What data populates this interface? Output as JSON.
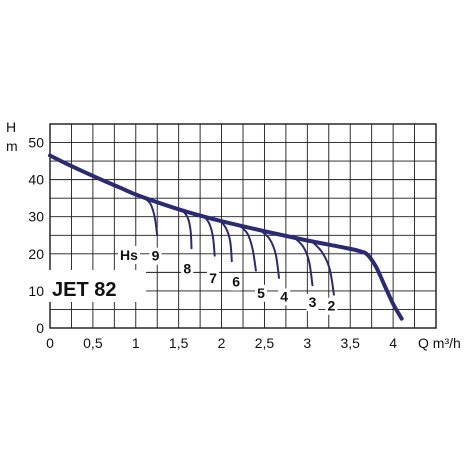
{
  "chart_data": {
    "type": "line",
    "title": "JET 82",
    "ylabel_top": "H",
    "ylabel_bottom": "m",
    "xlabel": "Q m³/h",
    "xlim": [
      0,
      4.5
    ],
    "ylim": [
      0,
      55
    ],
    "grid": true,
    "x_ticks": [
      {
        "v": 0,
        "label": "0"
      },
      {
        "v": 0.5,
        "label": "0,5"
      },
      {
        "v": 1,
        "label": "1"
      },
      {
        "v": 1.5,
        "label": "1,5"
      },
      {
        "v": 2,
        "label": "2"
      },
      {
        "v": 2.5,
        "label": "2,5"
      },
      {
        "v": 3,
        "label": "3"
      },
      {
        "v": 3.5,
        "label": "3,5"
      },
      {
        "v": 4,
        "label": "4"
      }
    ],
    "y_ticks": [
      {
        "v": 0,
        "label": "0"
      },
      {
        "v": 10,
        "label": "10"
      },
      {
        "v": 20,
        "label": "20"
      },
      {
        "v": 30,
        "label": "30"
      },
      {
        "v": 40,
        "label": "40"
      },
      {
        "v": 50,
        "label": "50"
      }
    ],
    "main_curve": {
      "x": [
        0,
        0.2,
        0.5,
        0.8,
        1.0,
        1.3,
        1.6,
        2.0,
        2.5,
        3.0,
        3.4,
        3.6,
        3.7,
        3.8,
        3.9,
        4.0,
        4.1
      ],
      "y": [
        46.5,
        44.2,
        41.0,
        38.0,
        36.0,
        33.5,
        31.3,
        28.8,
        26.1,
        23.6,
        21.8,
        20.8,
        19.8,
        16.5,
        11.5,
        6.5,
        2.5
      ]
    },
    "suction_label_prefix": "Hs",
    "suction_curves": [
      {
        "label": "9",
        "x": [
          1.1,
          1.17,
          1.22,
          1.25
        ],
        "y": [
          35.0,
          33.5,
          30.0,
          25.0
        ],
        "label_x": 1.23,
        "label_y": 19.5
      },
      {
        "label": "8",
        "x": [
          1.55,
          1.61,
          1.64,
          1.65
        ],
        "y": [
          31.6,
          29.5,
          26.0,
          21.5
        ],
        "label_x": 1.6,
        "label_y": 16.0
      },
      {
        "label": "7",
        "x": [
          1.8,
          1.86,
          1.9,
          1.92
        ],
        "y": [
          30.0,
          28.0,
          24.5,
          19.5
        ],
        "label_x": 1.9,
        "label_y": 13.5
      },
      {
        "label": "6",
        "x": [
          1.98,
          2.05,
          2.1,
          2.12
        ],
        "y": [
          29.0,
          27.0,
          23.5,
          18.0
        ],
        "label_x": 2.17,
        "label_y": 12.5
      },
      {
        "label": "5",
        "x": [
          2.2,
          2.3,
          2.36,
          2.4
        ],
        "y": [
          27.8,
          25.5,
          21.5,
          15.5
        ],
        "label_x": 2.46,
        "label_y": 9.5
      },
      {
        "label": "4",
        "x": [
          2.45,
          2.56,
          2.63,
          2.67
        ],
        "y": [
          26.4,
          24.0,
          20.0,
          13.5
        ],
        "label_x": 2.73,
        "label_y": 8.5
      },
      {
        "label": "3",
        "x": [
          2.85,
          2.95,
          3.02,
          3.06
        ],
        "y": [
          24.3,
          22.0,
          18.0,
          11.5
        ],
        "label_x": 3.06,
        "label_y": 7.0
      },
      {
        "label": "2",
        "x": [
          3.05,
          3.17,
          3.26,
          3.31
        ],
        "y": [
          23.4,
          20.5,
          16.0,
          9.0
        ],
        "label_x": 3.28,
        "label_y": 6.0
      }
    ]
  },
  "colors": {
    "curve": "#2b2a73",
    "grid": "#1a1a1a",
    "text": "#111111"
  }
}
